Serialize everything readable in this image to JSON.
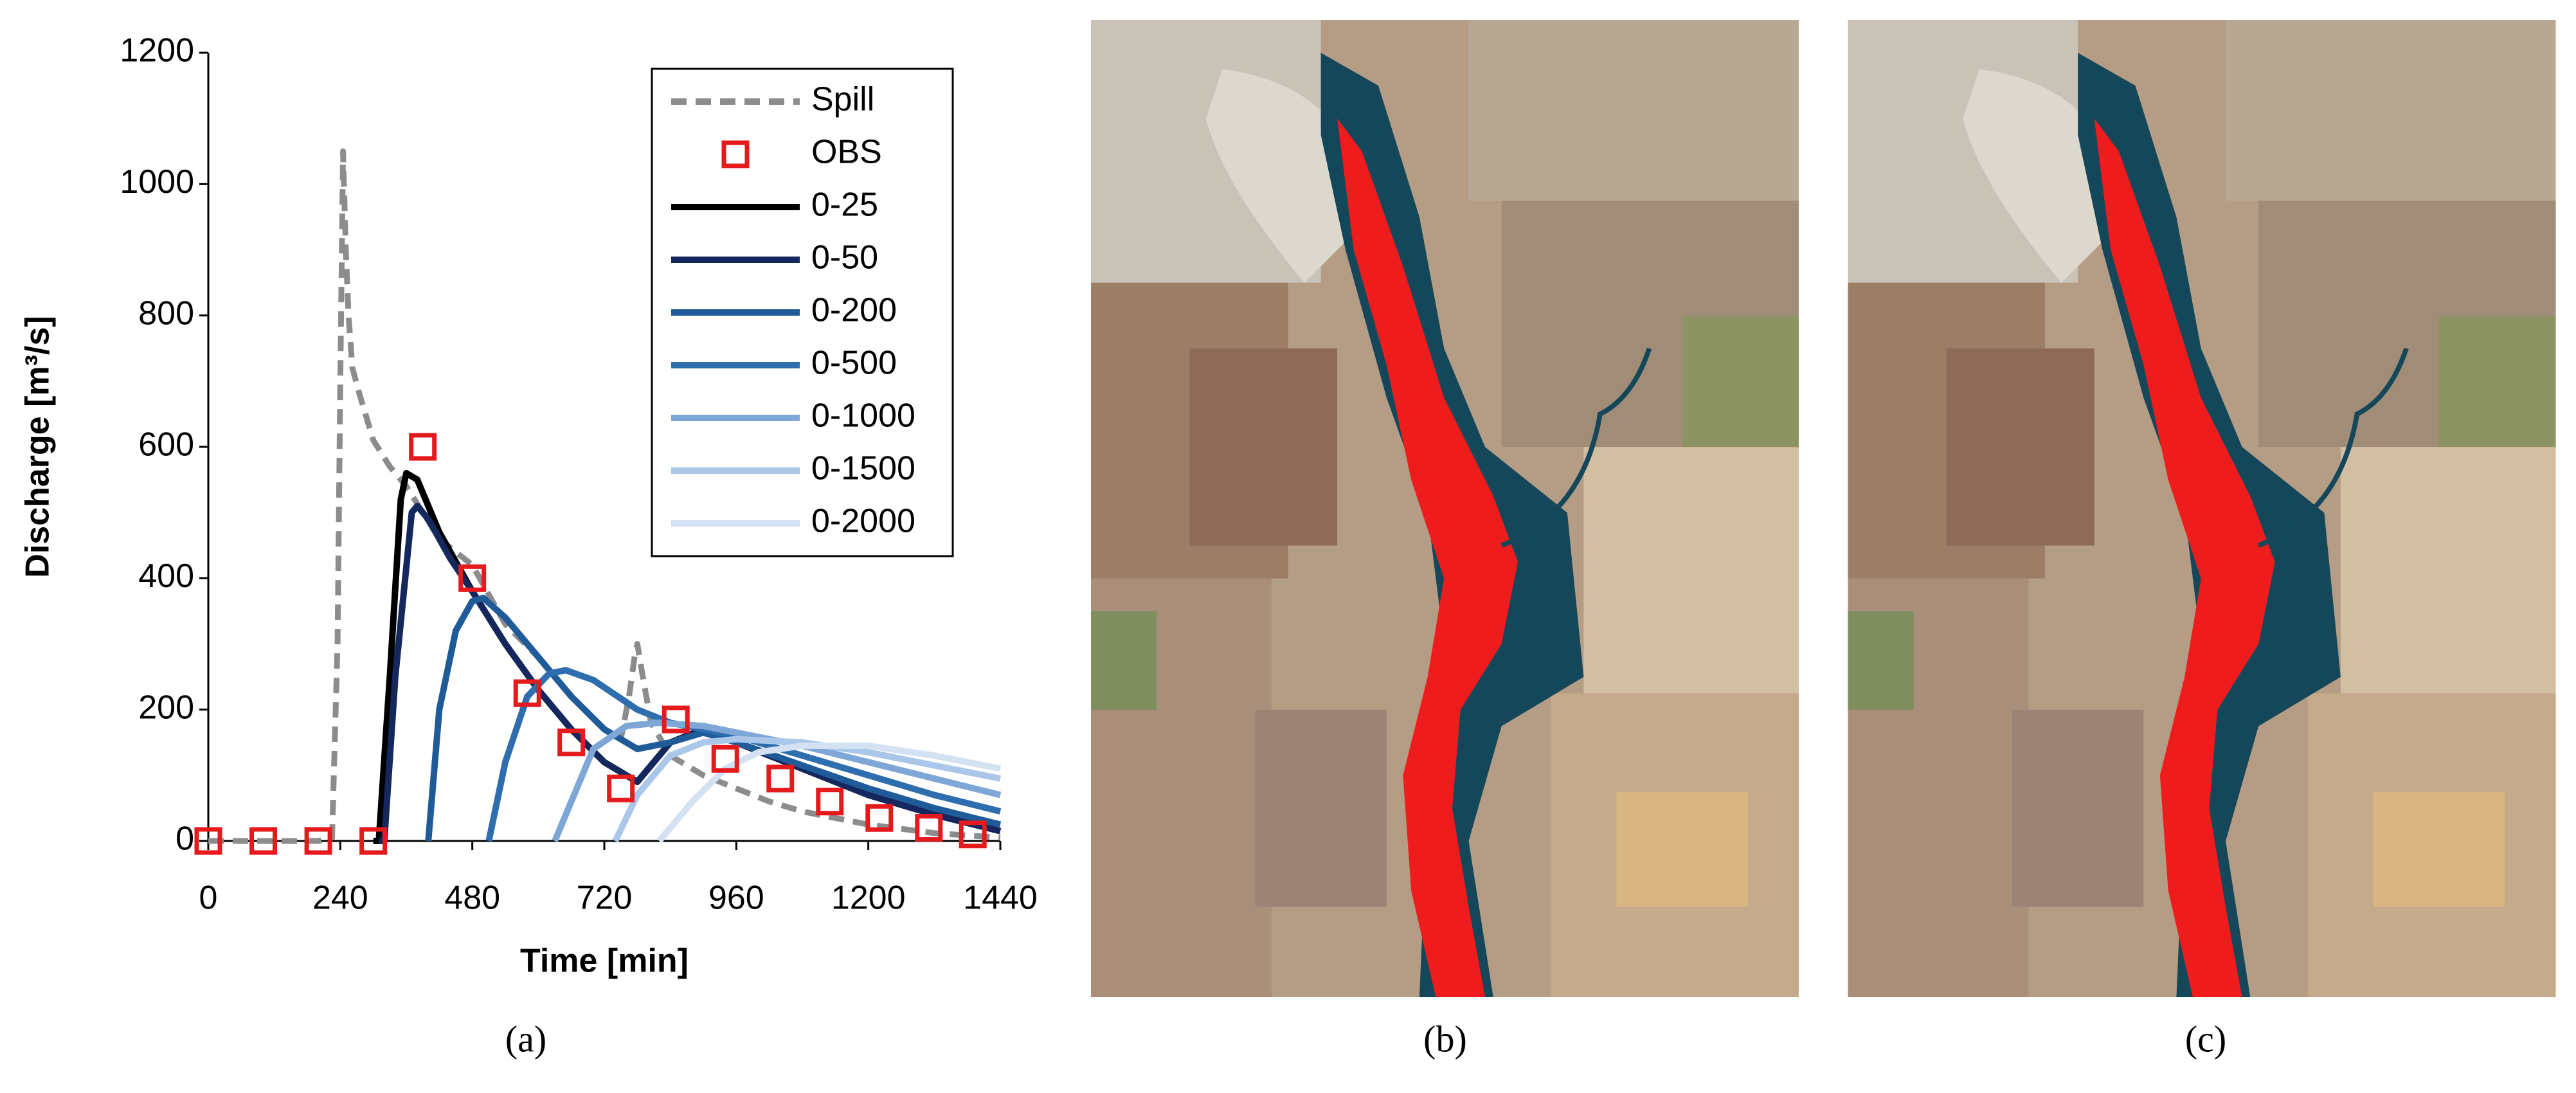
{
  "chart_data": {
    "type": "line",
    "xlabel": "Time [min]",
    "ylabel": "Discharge [m³/s]",
    "xlim": [
      0,
      1440
    ],
    "xticks": [
      0,
      240,
      480,
      720,
      960,
      1200,
      1440
    ],
    "ylim": [
      0,
      1200
    ],
    "yticks": [
      0,
      200,
      400,
      600,
      800,
      1000,
      1200
    ],
    "grid": false,
    "legend": "upper right",
    "series": [
      {
        "name": "Spill",
        "color": "#8c8c8c",
        "style": "dashed",
        "x": [
          0,
          200,
          225,
          235,
          240,
          245,
          250,
          255,
          262,
          275,
          300,
          330,
          360,
          420,
          480,
          540,
          600,
          660,
          720,
          750,
          765,
          775,
          780,
          790,
          805,
          840,
          900,
          960,
          1020,
          1080,
          1200,
          1320,
          1440
        ],
        "values": [
          0,
          0,
          5,
          300,
          700,
          1050,
          900,
          800,
          720,
          680,
          610,
          570,
          540,
          460,
          420,
          330,
          280,
          220,
          170,
          155,
          220,
          280,
          300,
          250,
          180,
          130,
          100,
          80,
          60,
          45,
          25,
          12,
          5
        ]
      },
      {
        "name": "OBS",
        "color": "#e41a1c",
        "style": "marker",
        "x": [
          0,
          100,
          200,
          300,
          390,
          480,
          580,
          660,
          750,
          850,
          940,
          1040,
          1130,
          1220,
          1310,
          1390
        ],
        "values": [
          0,
          0,
          0,
          0,
          600,
          400,
          225,
          150,
          80,
          185,
          125,
          95,
          60,
          35,
          20,
          10
        ]
      },
      {
        "name": "0-25",
        "color": "#000000",
        "style": "solid",
        "x": [
          300,
          310,
          330,
          350,
          360,
          380,
          420,
          480,
          540,
          600,
          660,
          720,
          780,
          840,
          900,
          960,
          1080,
          1200,
          1320,
          1440
        ],
        "values": [
          0,
          0,
          250,
          520,
          560,
          550,
          470,
          380,
          300,
          230,
          170,
          120,
          90,
          150,
          170,
          150,
          110,
          70,
          40,
          15
        ]
      },
      {
        "name": "0-50",
        "color": "#14285e",
        "style": "solid",
        "x": [
          310,
          320,
          340,
          370,
          380,
          400,
          440,
          480,
          540,
          600,
          660,
          720,
          780,
          840,
          900,
          960,
          1080,
          1200,
          1320,
          1440
        ],
        "values": [
          0,
          0,
          250,
          500,
          510,
          490,
          430,
          380,
          300,
          230,
          170,
          120,
          90,
          150,
          170,
          150,
          110,
          70,
          40,
          15
        ]
      },
      {
        "name": "0-200",
        "color": "#1f5b99",
        "style": "solid",
        "x": [
          400,
          420,
          450,
          480,
          500,
          540,
          600,
          660,
          720,
          780,
          840,
          900,
          960,
          1080,
          1200,
          1320,
          1440
        ],
        "values": [
          0,
          200,
          320,
          365,
          370,
          340,
          280,
          220,
          170,
          140,
          150,
          165,
          150,
          115,
          80,
          50,
          25
        ]
      },
      {
        "name": "0-500",
        "color": "#2e6eaf",
        "style": "solid",
        "x": [
          510,
          540,
          580,
          620,
          650,
          700,
          780,
          840,
          900,
          960,
          1080,
          1200,
          1320,
          1440
        ],
        "values": [
          0,
          120,
          220,
          255,
          260,
          245,
          200,
          180,
          170,
          160,
          130,
          100,
          70,
          45
        ]
      },
      {
        "name": "0-1000",
        "color": "#7ea7d8",
        "style": "solid",
        "x": [
          630,
          660,
          700,
          760,
          820,
          900,
          960,
          1080,
          1200,
          1320,
          1440
        ],
        "values": [
          0,
          60,
          140,
          175,
          180,
          175,
          165,
          145,
          120,
          95,
          70
        ]
      },
      {
        "name": "0-1500",
        "color": "#aac6e9",
        "style": "solid",
        "x": [
          740,
          780,
          840,
          900,
          960,
          1080,
          1200,
          1320,
          1440
        ],
        "values": [
          0,
          70,
          130,
          150,
          155,
          150,
          135,
          115,
          95
        ]
      },
      {
        "name": "0-2000",
        "color": "#d3e1f3",
        "style": "solid",
        "x": [
          820,
          880,
          940,
          1000,
          1080,
          1200,
          1320,
          1440
        ],
        "values": [
          0,
          60,
          110,
          135,
          145,
          145,
          130,
          110
        ]
      }
    ]
  },
  "captions": [
    "(a)",
    "(b)",
    "(c)"
  ]
}
